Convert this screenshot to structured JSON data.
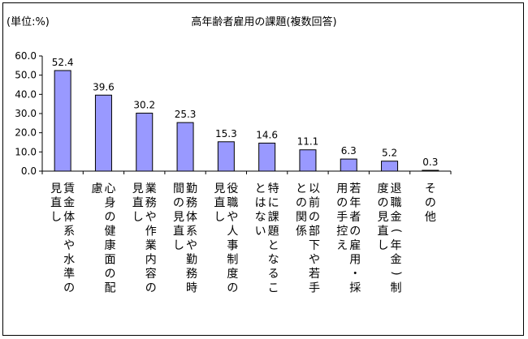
{
  "chart_data": {
    "type": "bar",
    "title": "高年齢者雇用の課題(複数回答)",
    "unit_label": "(単位:%)",
    "ylim": [
      0,
      60
    ],
    "yticks": [
      "0.0",
      "10.0",
      "20.0",
      "30.0",
      "40.0",
      "50.0",
      "60.0"
    ],
    "grid": false,
    "categories": [
      "賃金体系や水準の見直し",
      "心身の健康面の配慮",
      "業務や作業内容の見直し",
      "勤務体系や勤務時間の見直し",
      "役職や人事制度の見直し",
      "特に課題となることはない",
      "以前の部下や若手との関係",
      "若年者の雇用・採用の手控え",
      "退職金(年金)制度の見直し",
      "その他"
    ],
    "values": [
      52.4,
      39.6,
      30.2,
      25.3,
      15.3,
      14.6,
      11.1,
      6.3,
      5.2,
      0.3
    ],
    "value_labels": [
      "52.4",
      "39.6",
      "30.2",
      "25.3",
      "15.3",
      "14.6",
      "11.1",
      "6.3",
      "5.2",
      "0.3"
    ],
    "colors": {
      "bar_fill": "#9999ff",
      "bar_stroke": "#000000"
    }
  }
}
